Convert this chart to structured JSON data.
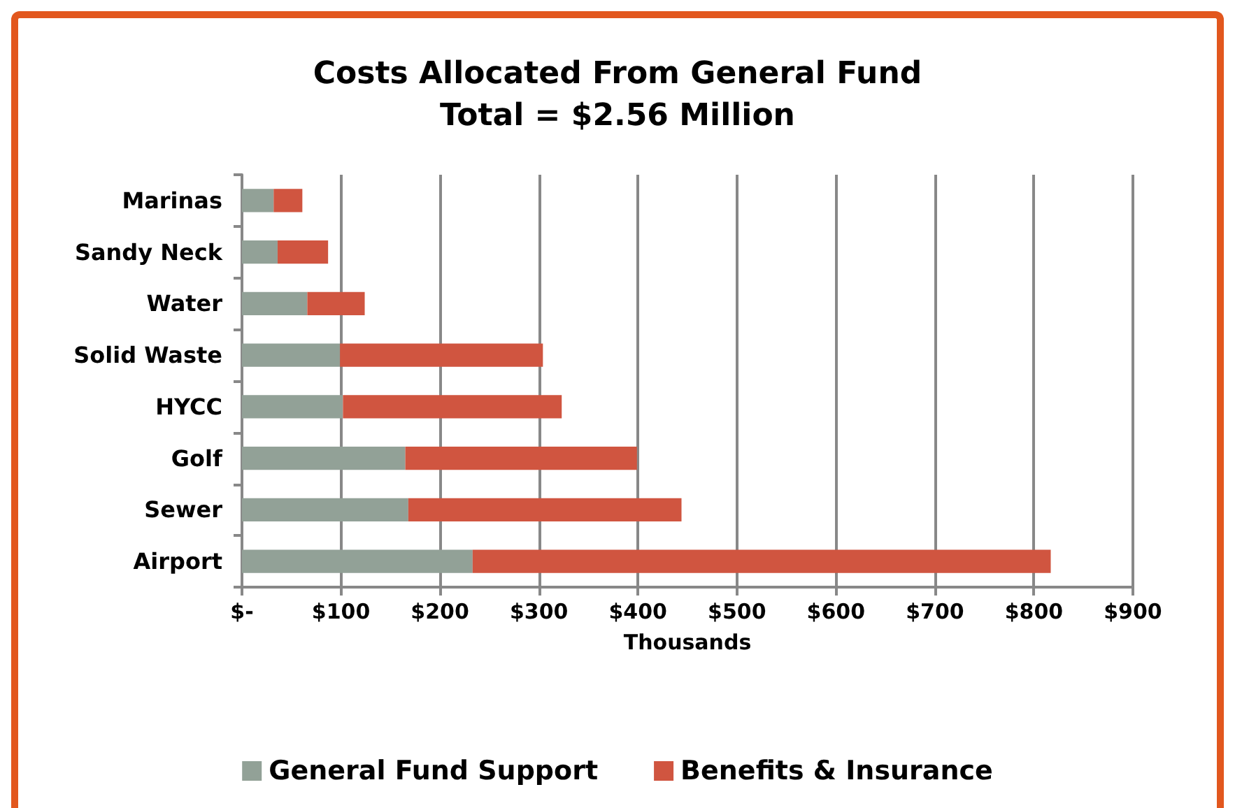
{
  "chart_data": {
    "type": "bar",
    "orientation": "horizontal",
    "stacked": true,
    "title": "Costs Allocated From General Fund\nTotal = $2.56 Million",
    "xlabel": "Thousands",
    "categories": [
      "Marinas",
      "Sandy Neck",
      "Water",
      "Solid Waste",
      "HYCC",
      "Golf",
      "Sewer",
      "Airport"
    ],
    "series": [
      {
        "name": "General Fund Support",
        "color": "#92a197",
        "values": [
          32,
          36,
          66,
          99,
          102,
          165,
          168,
          233
        ]
      },
      {
        "name": "Benefits & Insurance",
        "color": "#d05540",
        "values": [
          29,
          51,
          58,
          205,
          221,
          234,
          276,
          584
        ]
      }
    ],
    "xlim": [
      0,
      900
    ],
    "xticks": [
      {
        "value": 0,
        "label": "$-"
      },
      {
        "value": 100,
        "label": "$100"
      },
      {
        "value": 200,
        "label": "$200"
      },
      {
        "value": 300,
        "label": "$300"
      },
      {
        "value": 400,
        "label": "$400"
      },
      {
        "value": 500,
        "label": "$500"
      },
      {
        "value": 600,
        "label": "$600"
      },
      {
        "value": 700,
        "label": "$700"
      },
      {
        "value": 800,
        "label": "$800"
      },
      {
        "value": 900,
        "label": "$900"
      }
    ],
    "grid": "x",
    "legend": "bottom"
  }
}
